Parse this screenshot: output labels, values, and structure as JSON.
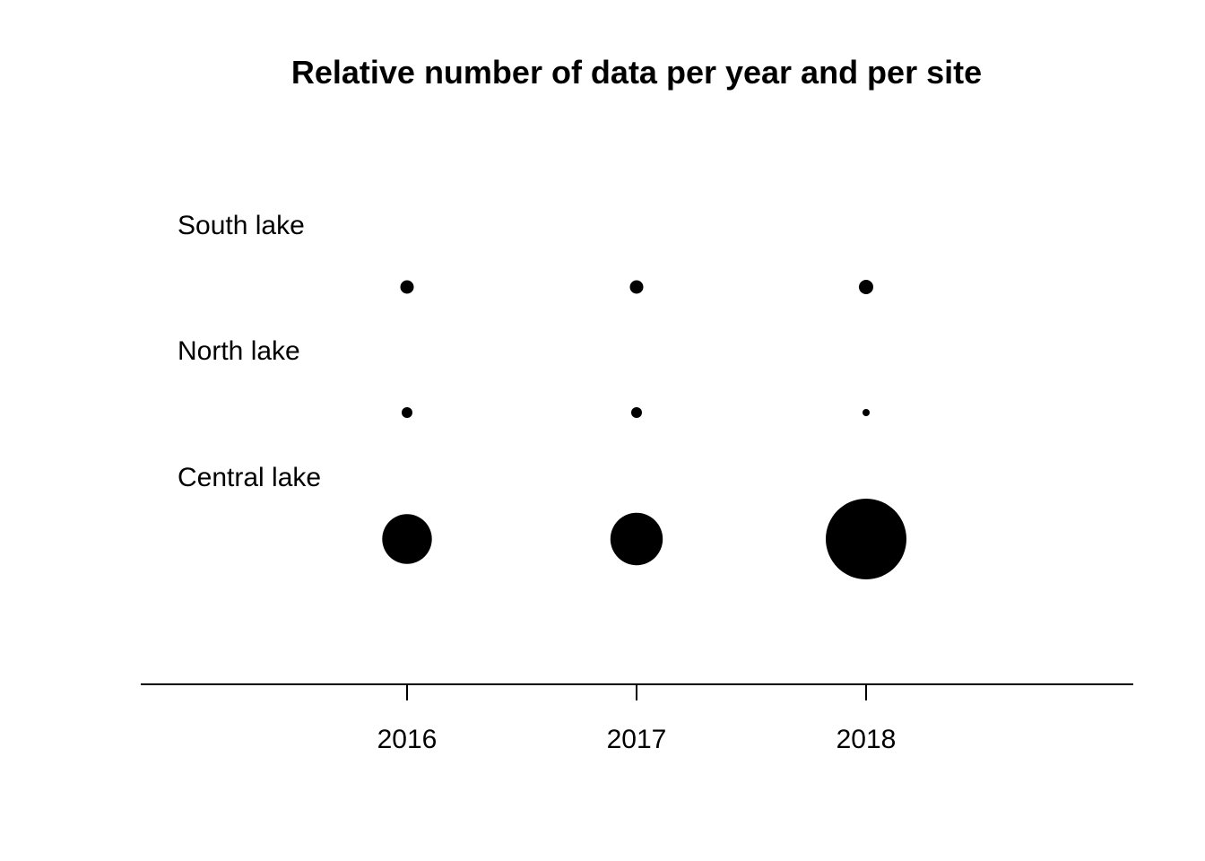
{
  "chart_data": {
    "type": "bubble",
    "title": "Relative number of data per year and per site",
    "xlabel": "",
    "ylabel": "",
    "x_ticks": [
      "2016",
      "2017",
      "2018"
    ],
    "sites": [
      "Central lake",
      "North lake",
      "South lake"
    ],
    "series": [
      {
        "name": "Central lake",
        "values": [
          0.38,
          0.42,
          1.0
        ]
      },
      {
        "name": "North lake",
        "values": [
          0.018,
          0.018,
          0.008
        ]
      },
      {
        "name": "South lake",
        "values": [
          0.028,
          0.028,
          0.032
        ]
      }
    ],
    "grid": false,
    "legend": "none",
    "colors": {
      "marker": "#000000",
      "axis": "#000000",
      "text": "#000000"
    }
  }
}
